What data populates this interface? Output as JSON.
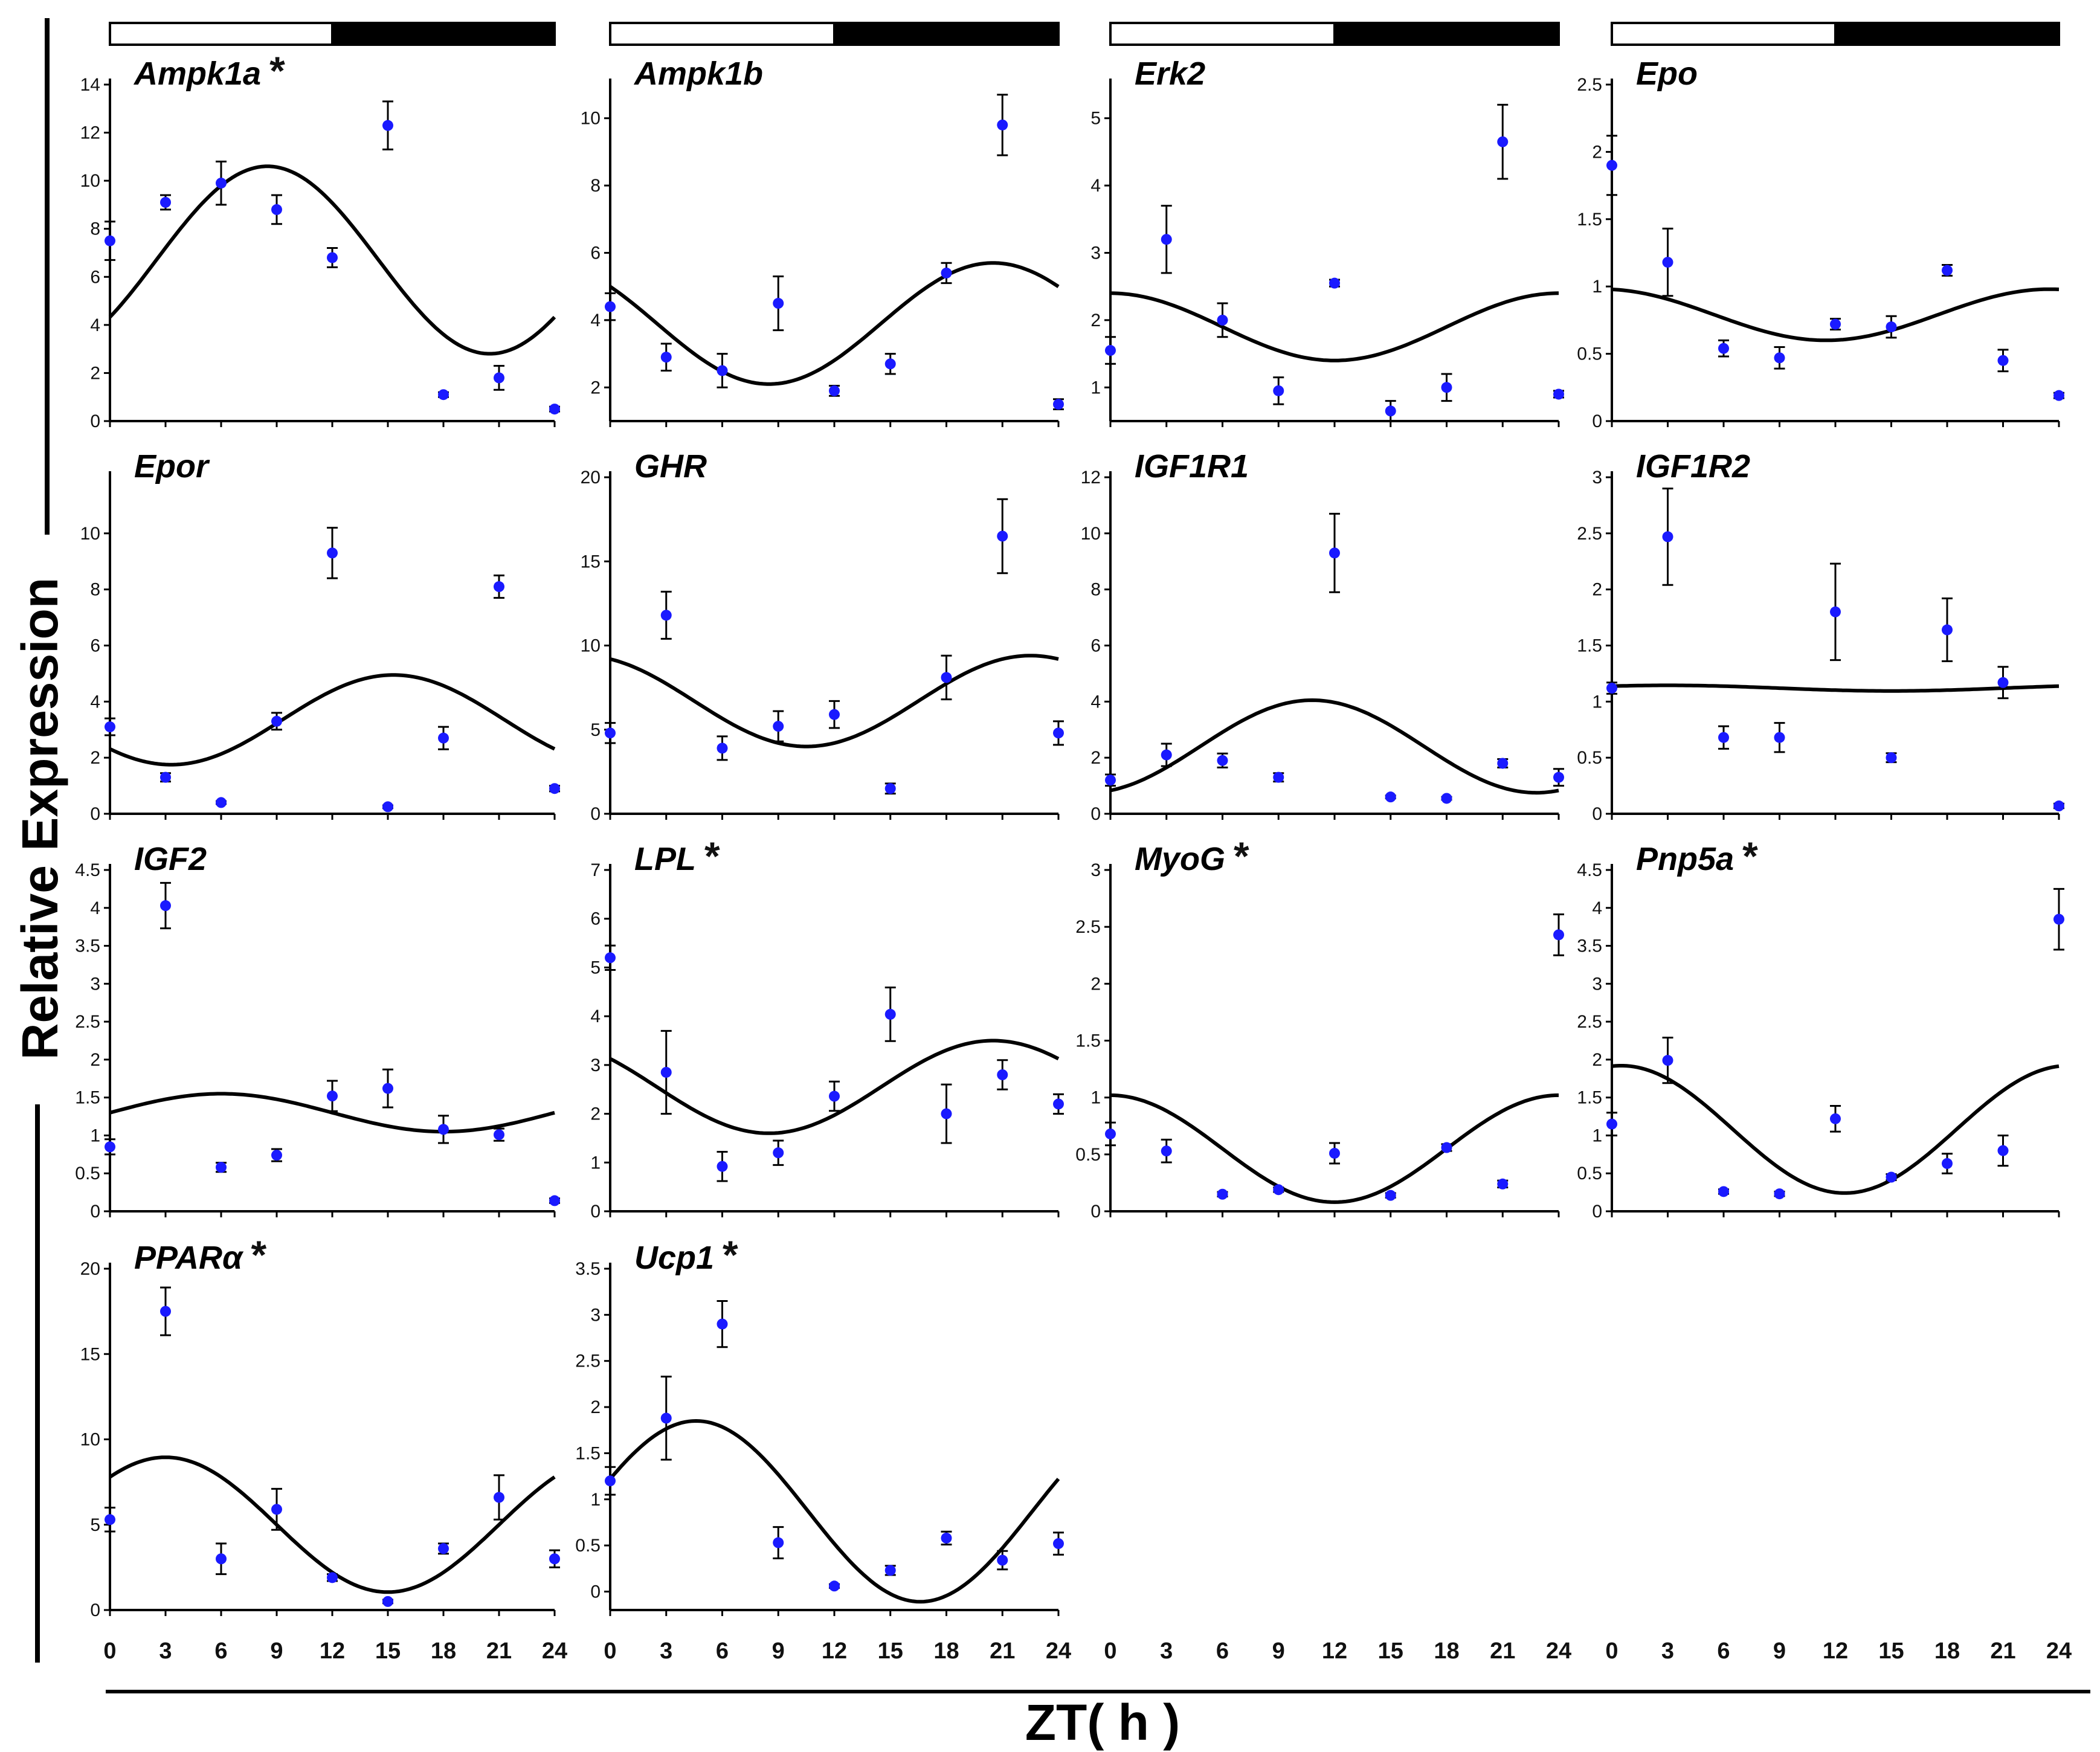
{
  "figure": {
    "ylabel": "Relative Expression",
    "xlabel": "ZT( h )",
    "x_ticks": [
      "0",
      "3",
      "6",
      "9",
      "12",
      "15",
      "18",
      "21",
      "24"
    ]
  },
  "colors": {
    "points": "#1a1aff",
    "curve": "#000000",
    "light_bar": "#ffffff",
    "dark_bar": "#000000"
  },
  "chart_data": [
    {
      "type": "scatter",
      "gene": "Ampk1a",
      "star": true,
      "ylim": [
        0,
        14
      ],
      "yticks": [
        0,
        2,
        4,
        6,
        8,
        10,
        12,
        14
      ],
      "x": [
        0,
        3,
        6,
        9,
        12,
        15,
        18,
        21,
        24
      ],
      "y": [
        7.5,
        9.1,
        9.9,
        8.8,
        6.8,
        12.3,
        1.1,
        1.8,
        0.5
      ],
      "err": [
        0.8,
        0.3,
        0.9,
        0.6,
        0.4,
        1.0,
        0.1,
        0.5,
        0.1
      ],
      "fit": {
        "mesor": 6.7,
        "amp": 3.9,
        "peak": 8.5
      }
    },
    {
      "type": "scatter",
      "gene": "Ampk1b",
      "star": false,
      "ylim": [
        1,
        11
      ],
      "yticks": [
        2,
        4,
        6,
        8,
        10
      ],
      "x": [
        0,
        3,
        6,
        9,
        12,
        15,
        18,
        21,
        24
      ],
      "y": [
        4.4,
        2.9,
        2.5,
        4.5,
        1.9,
        2.7,
        5.4,
        9.8,
        1.5
      ],
      "err": [
        0.4,
        0.4,
        0.5,
        0.8,
        0.15,
        0.3,
        0.3,
        0.9,
        0.15
      ],
      "fit": {
        "mesor": 3.9,
        "amp": 1.8,
        "peak": 20.5
      }
    },
    {
      "type": "scatter",
      "gene": "Erk2",
      "star": false,
      "ylim": [
        0.5,
        5.5
      ],
      "yticks": [
        1,
        2,
        3,
        4,
        5
      ],
      "x": [
        0,
        3,
        6,
        9,
        12,
        15,
        18,
        21,
        24
      ],
      "y": [
        1.55,
        3.2,
        2.0,
        0.95,
        2.55,
        0.65,
        1.0,
        4.65,
        0.9
      ],
      "err": [
        0.2,
        0.5,
        0.25,
        0.2,
        0.05,
        0.15,
        0.2,
        0.55,
        0.05
      ],
      "fit": {
        "mesor": 1.9,
        "amp": 0.5,
        "peak": 0
      }
    },
    {
      "type": "scatter",
      "gene": "Epo",
      "star": false,
      "ylim": [
        0,
        2.5
      ],
      "yticks": [
        0,
        0.5,
        1,
        1.5,
        2,
        2.5
      ],
      "x": [
        0,
        3,
        6,
        9,
        12,
        15,
        18,
        21,
        24
      ],
      "y": [
        1.9,
        1.18,
        0.54,
        0.47,
        0.72,
        0.7,
        1.12,
        0.45,
        0.19
      ],
      "err": [
        0.22,
        0.25,
        0.06,
        0.08,
        0.04,
        0.08,
        0.04,
        0.08,
        0.02
      ],
      "fit": {
        "mesor": 0.79,
        "amp": 0.19,
        "peak": 23.5
      }
    },
    {
      "type": "scatter",
      "gene": "Epor",
      "star": false,
      "ylim": [
        0,
        12
      ],
      "yticks": [
        0,
        2,
        4,
        6,
        8,
        10
      ],
      "x": [
        0,
        3,
        6,
        9,
        12,
        15,
        18,
        21,
        24
      ],
      "y": [
        3.1,
        1.3,
        0.4,
        3.3,
        9.3,
        0.25,
        2.7,
        8.1,
        0.9
      ],
      "err": [
        0.3,
        0.15,
        0.05,
        0.3,
        0.9,
        0.05,
        0.4,
        0.4,
        0.1
      ],
      "fit": {
        "mesor": 3.35,
        "amp": 1.6,
        "peak": 15.3
      }
    },
    {
      "type": "scatter",
      "gene": "GHR",
      "star": false,
      "ylim": [
        0,
        20
      ],
      "yticks": [
        0,
        5,
        10,
        15,
        20
      ],
      "x": [
        0,
        3,
        6,
        9,
        12,
        15,
        18,
        21,
        24
      ],
      "y": [
        4.8,
        11.8,
        3.9,
        5.2,
        5.9,
        1.5,
        8.1,
        16.5,
        4.8
      ],
      "err": [
        0.6,
        1.4,
        0.7,
        0.9,
        0.8,
        0.3,
        1.3,
        2.2,
        0.7
      ],
      "fit": {
        "mesor": 6.7,
        "amp": 2.7,
        "peak": 22.5
      }
    },
    {
      "type": "scatter",
      "gene": "IGF1R1",
      "star": false,
      "ylim": [
        0,
        12
      ],
      "yticks": [
        0,
        2,
        4,
        6,
        8,
        10,
        12
      ],
      "x": [
        0,
        3,
        6,
        9,
        12,
        15,
        18,
        21,
        24
      ],
      "y": [
        1.2,
        2.1,
        1.9,
        1.3,
        9.3,
        0.6,
        0.55,
        1.8,
        1.3
      ],
      "err": [
        0.2,
        0.4,
        0.25,
        0.15,
        1.4,
        0.05,
        0.05,
        0.15,
        0.3
      ],
      "fit": {
        "mesor": 2.4,
        "amp": 1.65,
        "peak": 10.8
      }
    },
    {
      "type": "scatter",
      "gene": "IGF1R2",
      "star": false,
      "ylim": [
        0,
        3
      ],
      "yticks": [
        0,
        0.5,
        1,
        1.5,
        2,
        2.5,
        3
      ],
      "x": [
        0,
        3,
        6,
        9,
        12,
        15,
        18,
        21,
        24
      ],
      "y": [
        1.12,
        2.47,
        0.68,
        0.68,
        1.8,
        0.5,
        1.64,
        1.17,
        0.07
      ],
      "err": [
        0.05,
        0.43,
        0.1,
        0.13,
        0.43,
        0.04,
        0.28,
        0.14,
        0.02
      ],
      "fit": {
        "mesor": 1.12,
        "amp": 0.025,
        "peak": 3
      }
    },
    {
      "type": "scatter",
      "gene": "IGF2",
      "star": false,
      "ylim": [
        0,
        4.5
      ],
      "yticks": [
        0,
        0.5,
        1,
        1.5,
        2,
        2.5,
        3,
        3.5,
        4,
        4.5
      ],
      "x": [
        0,
        3,
        6,
        9,
        12,
        15,
        18,
        21,
        24
      ],
      "y": [
        0.85,
        4.03,
        0.58,
        0.74,
        1.52,
        1.62,
        1.08,
        1.01,
        0.14
      ],
      "err": [
        0.1,
        0.3,
        0.06,
        0.08,
        0.2,
        0.25,
        0.18,
        0.08,
        0.03
      ],
      "fit": {
        "mesor": 1.3,
        "amp": 0.25,
        "peak": 6
      }
    },
    {
      "type": "scatter",
      "gene": "LPL",
      "star": true,
      "ylim": [
        0,
        7
      ],
      "yticks": [
        0,
        1,
        2,
        3,
        4,
        5,
        6,
        7
      ],
      "x": [
        0,
        3,
        6,
        9,
        12,
        15,
        18,
        21,
        24
      ],
      "y": [
        5.2,
        2.85,
        0.92,
        1.2,
        2.36,
        4.04,
        2.0,
        2.8,
        2.2
      ],
      "err": [
        0.25,
        0.85,
        0.3,
        0.25,
        0.3,
        0.55,
        0.6,
        0.3,
        0.2
      ],
      "fit": {
        "mesor": 2.55,
        "amp": 0.95,
        "peak": 20.5
      }
    },
    {
      "type": "scatter",
      "gene": "MyoG",
      "star": true,
      "ylim": [
        0,
        3
      ],
      "yticks": [
        0,
        0.5,
        1,
        1.5,
        2,
        2.5,
        3
      ],
      "x": [
        0,
        3,
        6,
        9,
        12,
        15,
        18,
        21,
        24
      ],
      "y": [
        0.68,
        0.53,
        0.15,
        0.19,
        0.51,
        0.14,
        0.56,
        0.24,
        2.43
      ],
      "err": [
        0.1,
        0.1,
        0.02,
        0.02,
        0.09,
        0.02,
        0.03,
        0.03,
        0.18
      ],
      "fit": {
        "mesor": 0.55,
        "amp": 0.47,
        "peak": 0
      }
    },
    {
      "type": "scatter",
      "gene": "Pnp5a",
      "star": true,
      "ylim": [
        0,
        4.5
      ],
      "yticks": [
        0,
        0.5,
        1,
        1.5,
        2,
        2.5,
        3,
        3.5,
        4,
        4.5
      ],
      "x": [
        0,
        3,
        6,
        9,
        12,
        15,
        18,
        21,
        24
      ],
      "y": [
        1.15,
        1.99,
        0.26,
        0.23,
        1.22,
        0.45,
        0.63,
        0.8,
        3.85
      ],
      "err": [
        0.15,
        0.3,
        0.03,
        0.03,
        0.17,
        0.04,
        0.13,
        0.2,
        0.4
      ],
      "fit": {
        "mesor": 1.08,
        "amp": 0.84,
        "peak": 0.5
      }
    },
    {
      "type": "scatter",
      "gene": "PPARα",
      "star": true,
      "ylim": [
        0,
        20
      ],
      "yticks": [
        0,
        5,
        10,
        15,
        20
      ],
      "x": [
        0,
        3,
        6,
        9,
        12,
        15,
        18,
        21,
        24
      ],
      "y": [
        5.3,
        17.5,
        3.0,
        5.9,
        1.9,
        0.5,
        3.6,
        6.6,
        3.0
      ],
      "err": [
        0.7,
        1.4,
        0.9,
        1.2,
        0.2,
        0.1,
        0.3,
        1.3,
        0.5
      ],
      "fit": {
        "mesor": 5.0,
        "amp": 3.95,
        "peak": 3
      }
    },
    {
      "type": "scatter",
      "gene": "Ucp1",
      "star": true,
      "ylim": [
        -0.2,
        3.5
      ],
      "yticks": [
        0,
        0.5,
        1,
        1.5,
        2,
        2.5,
        3,
        3.5
      ],
      "x": [
        0,
        3,
        6,
        9,
        12,
        15,
        18,
        21,
        24
      ],
      "y": [
        1.2,
        1.88,
        2.9,
        0.53,
        0.06,
        0.23,
        0.58,
        0.34,
        0.52
      ],
      "err": [
        0.15,
        0.45,
        0.25,
        0.17,
        0.02,
        0.05,
        0.07,
        0.1,
        0.12
      ],
      "fit": {
        "mesor": 0.87,
        "amp": 0.98,
        "peak": 4.6
      }
    }
  ]
}
